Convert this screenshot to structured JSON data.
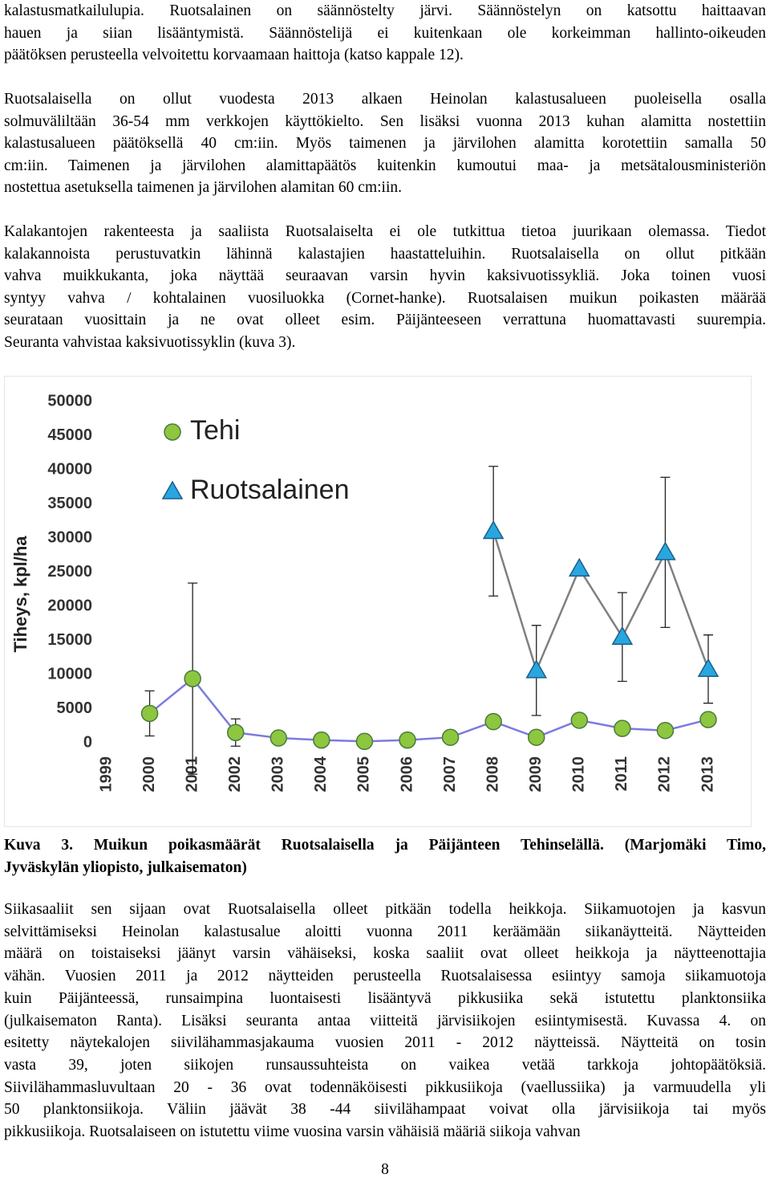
{
  "paragraphs": [
    {
      "lines": [
        "kalastusmatkailulupia. Ruotsalainen on säännöstelty järvi. Säännöstelyn on katsottu haittaavan",
        "hauen ja siian lisääntymistä. Säännöstelijä ei kuitenkaan ole korkeimman hallinto-oikeuden",
        "päätöksen perusteella velvoitettu korvaamaan haittoja (katso kappale 12)."
      ]
    },
    {
      "lines": [
        "Ruotsalaisella on ollut vuodesta 2013 alkaen Heinolan kalastusalueen puoleisella osalla",
        "solmuväliltään 36-54 mm verkkojen käyttökielto. Sen lisäksi vuonna 2013 kuhan alamitta nostettiin",
        "kalastusalueen päätöksellä 40 cm:iin. Myös taimenen ja järvilohen alamitta korotettiin samalla 50",
        "cm:iin. Taimenen ja järvilohen alamittapäätös kuitenkin kumoutui maa- ja metsätalousministeriön",
        "nostettua asetuksella taimenen ja järvilohen alamitan 60 cm:iin."
      ]
    },
    {
      "lines": [
        "Kalakantojen rakenteesta ja saaliista Ruotsalaiselta ei ole tutkittua tietoa juurikaan olemassa. Tiedot",
        "kalakannoista perustuvatkin lähinnä kalastajien haastatteluihin. Ruotsalaisella on ollut pitkään",
        "vahva muikkukanta, joka näyttää seuraavan varsin hyvin kaksivuotissykliä. Joka toinen vuosi",
        "syntyy vahva / kohtalainen vuosiluokka (Cornet-hanke). Ruotsalaisen muikun poikasten määrää",
        "seurataan vuosittain ja ne ovat olleet esim. Päijänteeseen verrattuna huomattavasti suurempia.",
        "Seuranta vahvistaa kaksivuotissyklin (kuva 3)."
      ]
    }
  ],
  "chart_data": {
    "type": "line",
    "y_label": "Tiheys, kpl/ha",
    "categories": [
      "1999",
      "2000",
      "2001",
      "2002",
      "2003",
      "2004",
      "2005",
      "2006",
      "2007",
      "2008",
      "2009",
      "2010",
      "2011",
      "2012",
      "2013"
    ],
    "series": [
      {
        "name": "Tehi",
        "color": "#8dc63f",
        "line_color": "#7b7be0",
        "marker": "circle",
        "values": [
          null,
          4300,
          9400,
          1500,
          700,
          400,
          200,
          400,
          800,
          3100,
          800,
          3300,
          2100,
          1800,
          3400
        ],
        "errors": [
          null,
          3300,
          14000,
          2000,
          null,
          null,
          null,
          null,
          null,
          null,
          null,
          null,
          null,
          null,
          null
        ]
      },
      {
        "name": "Ruotsalainen",
        "color": "#29a6e0",
        "line_color": "#808080",
        "marker": "triangle",
        "values": [
          null,
          null,
          null,
          null,
          null,
          null,
          null,
          null,
          null,
          31000,
          10600,
          25500,
          15500,
          27900,
          10800
        ],
        "errors": [
          null,
          null,
          null,
          null,
          null,
          null,
          null,
          null,
          null,
          9500,
          6600,
          null,
          6500,
          11000,
          5000
        ]
      }
    ],
    "ylim": [
      0,
      50000
    ],
    "yticks": [
      0,
      5000,
      10000,
      15000,
      20000,
      25000,
      30000,
      35000,
      40000,
      45000,
      50000
    ]
  },
  "caption": [
    "Kuva 3. Muikun poikasmäärät Ruotsalaisella ja Päijänteen Tehinselällä. (Marjomäki Timo,",
    "Jyväskylän yliopisto, julkaisematon)"
  ],
  "paragraphs_after": [
    {
      "lines": [
        "Siikasaaliit sen sijaan ovat Ruotsalaisella olleet pitkään todella heikkoja. Siikamuotojen ja kasvun",
        "selvittämiseksi Heinolan kalastusalue aloitti vuonna 2011 keräämään siikanäytteitä. Näytteiden",
        "määrä on toistaiseksi jäänyt varsin vähäiseksi, koska saaliit ovat olleet heikkoja ja näytteenottajia",
        "vähän. Vuosien 2011 ja 2012 näytteiden perusteella Ruotsalaisessa esiintyy samoja siikamuotoja",
        "kuin Päijänteessä, runsaimpina luontaisesti lisääntyvä pikkusiika sekä istutettu planktonsiika",
        "(julkaisematon Ranta). Lisäksi seuranta antaa viitteitä järvisiikojen esiintymisestä. Kuvassa 4. on",
        "esitetty näytekalojen siivilähammasjakauma vuosien 2011 - 2012 näytteissä. Näytteitä on tosin",
        "vasta 39, joten siikojen runsaussuhteista on vaikea vetää tarkkoja johtopäätöksiä.",
        "Siivilähammasluvultaan 20 - 36 ovat todennäköisesti pikkusiikoja (vaellussiika) ja varmuudella yli",
        "50 planktonsiikoja. Väliin jäävät 38 -44 siivilähampaat voivat olla järvisiikoja tai myös",
        "pikkusiikoja. Ruotsalaiseen on istutettu viime vuosina varsin vähäisiä määriä siikoja vahvan"
      ]
    }
  ],
  "page_number": "8"
}
